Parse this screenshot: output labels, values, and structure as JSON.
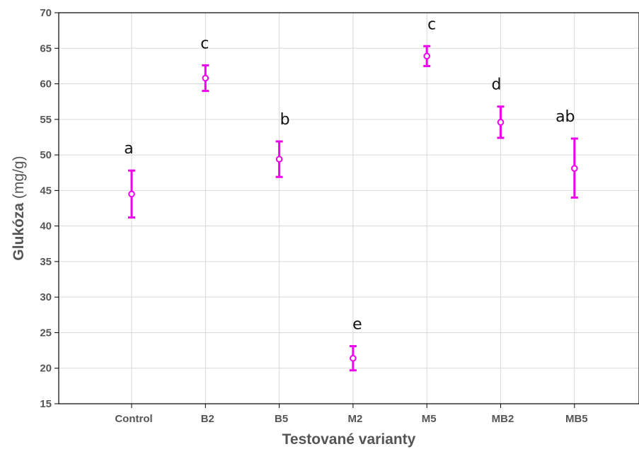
{
  "chart_data": {
    "type": "scatter",
    "categories": [
      "Control",
      "B2",
      "B5",
      "M2",
      "M5",
      "MB2",
      "MB5"
    ],
    "series": [
      {
        "values": [
          44.5,
          60.8,
          49.4,
          21.4,
          63.9,
          54.6,
          48.1
        ],
        "lower": [
          41.2,
          59.0,
          46.9,
          19.7,
          62.5,
          52.4,
          44.0
        ],
        "upper": [
          47.8,
          62.6,
          51.9,
          23.1,
          65.3,
          56.8,
          52.3
        ]
      }
    ],
    "annotations": [
      "a",
      "c",
      "b",
      "e",
      "c",
      "d",
      "ab"
    ],
    "xlabel": "Testované varianty",
    "ylabel_main": "Glukóza",
    "ylabel_unit": " (mg/g)",
    "ylim": [
      15,
      70
    ],
    "yticks": [
      15,
      20,
      25,
      30,
      35,
      40,
      45,
      50,
      55,
      60,
      65,
      70
    ],
    "grid": true,
    "marker_color": "#ee00ee"
  }
}
